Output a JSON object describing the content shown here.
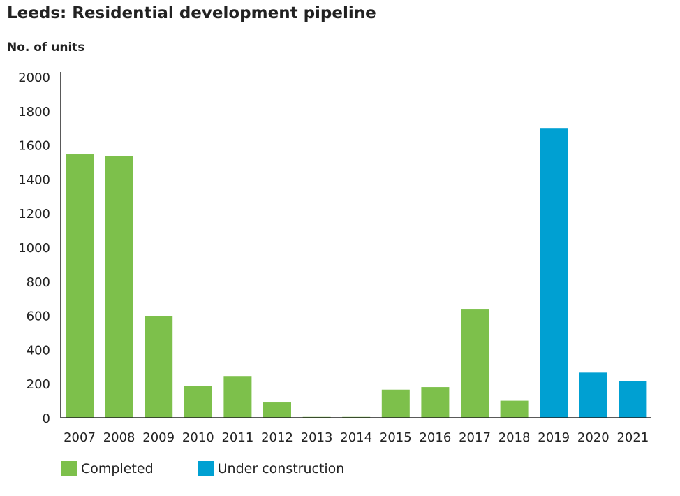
{
  "chart_data": {
    "type": "bar",
    "title": "Leeds: Residential development pipeline",
    "ylabel": "No. of units",
    "xlabel": "",
    "ylim": [
      0,
      2000
    ],
    "yticks": [
      0,
      200,
      400,
      600,
      800,
      1000,
      1200,
      1400,
      1600,
      1800,
      2000
    ],
    "categories": [
      "2007",
      "2008",
      "2009",
      "2010",
      "2011",
      "2012",
      "2013",
      "2014",
      "2015",
      "2016",
      "2017",
      "2018",
      "2019",
      "2020",
      "2021"
    ],
    "values": [
      1545,
      1535,
      595,
      185,
      245,
      90,
      5,
      5,
      165,
      180,
      635,
      100,
      1700,
      265,
      215
    ],
    "status": [
      "Completed",
      "Completed",
      "Completed",
      "Completed",
      "Completed",
      "Completed",
      "Completed",
      "Completed",
      "Completed",
      "Completed",
      "Completed",
      "Completed",
      "Under construction",
      "Under construction",
      "Under construction"
    ],
    "legend": [
      {
        "name": "Completed",
        "color": "#7dc04b"
      },
      {
        "name": "Under construction",
        "color": "#00a0d2"
      }
    ],
    "grid": false,
    "legend_position": "bottom-left"
  }
}
